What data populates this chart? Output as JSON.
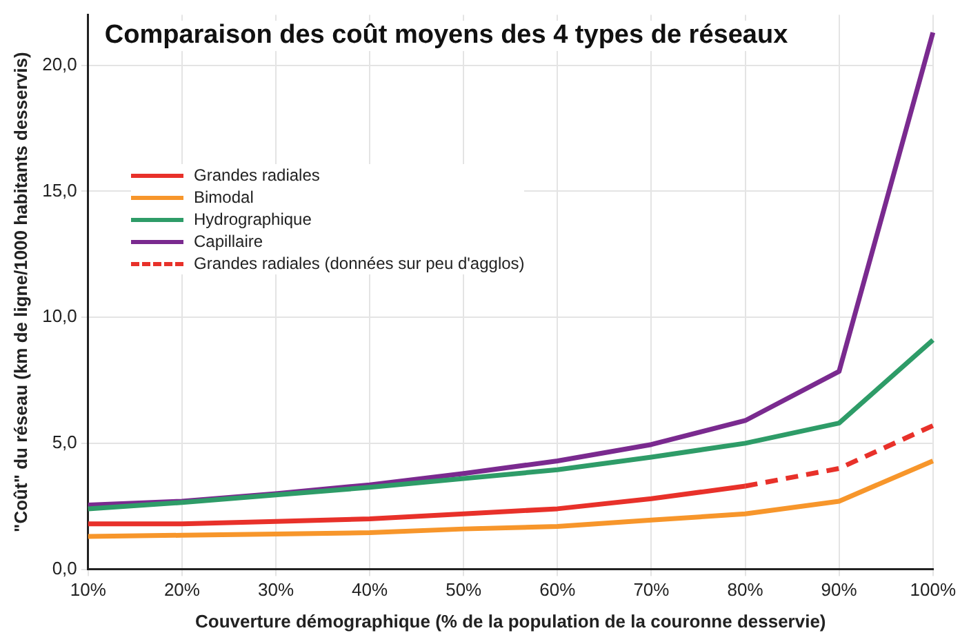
{
  "chart_data": {
    "type": "line",
    "title": "Comparaison des coût moyens des 4 types de réseaux",
    "xlabel": "Couverture démographique (% de la population de la couronne desservie)",
    "ylabel": "\"Coût\" du réseau (km de ligne/1000 habitants desservis)",
    "categories": [
      "10%",
      "20%",
      "30%",
      "40%",
      "50%",
      "60%",
      "70%",
      "80%",
      "90%",
      "100%"
    ],
    "series": [
      {
        "name": "Grandes radiales",
        "color": "#e8312a",
        "values": [
          1.8,
          1.8,
          1.9,
          2.0,
          2.2,
          2.4,
          2.8,
          3.3,
          null,
          null
        ]
      },
      {
        "name": "Bimodal",
        "color": "#f7962b",
        "values": [
          1.3,
          1.35,
          1.4,
          1.45,
          1.6,
          1.7,
          1.95,
          2.2,
          2.7,
          4.3
        ]
      },
      {
        "name": "Hydrographique",
        "color": "#2e9c68",
        "values": [
          2.4,
          2.65,
          2.95,
          3.25,
          3.6,
          3.95,
          4.45,
          5.0,
          5.8,
          9.1
        ]
      },
      {
        "name": "Capillaire",
        "color": "#7a2a8f",
        "values": [
          2.55,
          2.7,
          3.0,
          3.35,
          3.8,
          4.3,
          4.95,
          5.9,
          7.85,
          21.3
        ]
      },
      {
        "name": "Grandes radiales (données sur peu d'agglos)",
        "color": "#e8312a",
        "line_style": "dashed",
        "values": [
          null,
          null,
          null,
          null,
          null,
          null,
          null,
          3.3,
          4.0,
          5.7
        ]
      }
    ],
    "ylim": [
      0,
      22
    ],
    "yticks": [
      {
        "value": 0,
        "label": "0,0"
      },
      {
        "value": 5,
        "label": "5,0"
      },
      {
        "value": 10,
        "label": "10,0"
      },
      {
        "value": 15,
        "label": "15,0"
      },
      {
        "value": 20,
        "label": "20,0"
      }
    ],
    "grid": true,
    "legend": "top left",
    "marker": "none",
    "line_style": "solid"
  }
}
